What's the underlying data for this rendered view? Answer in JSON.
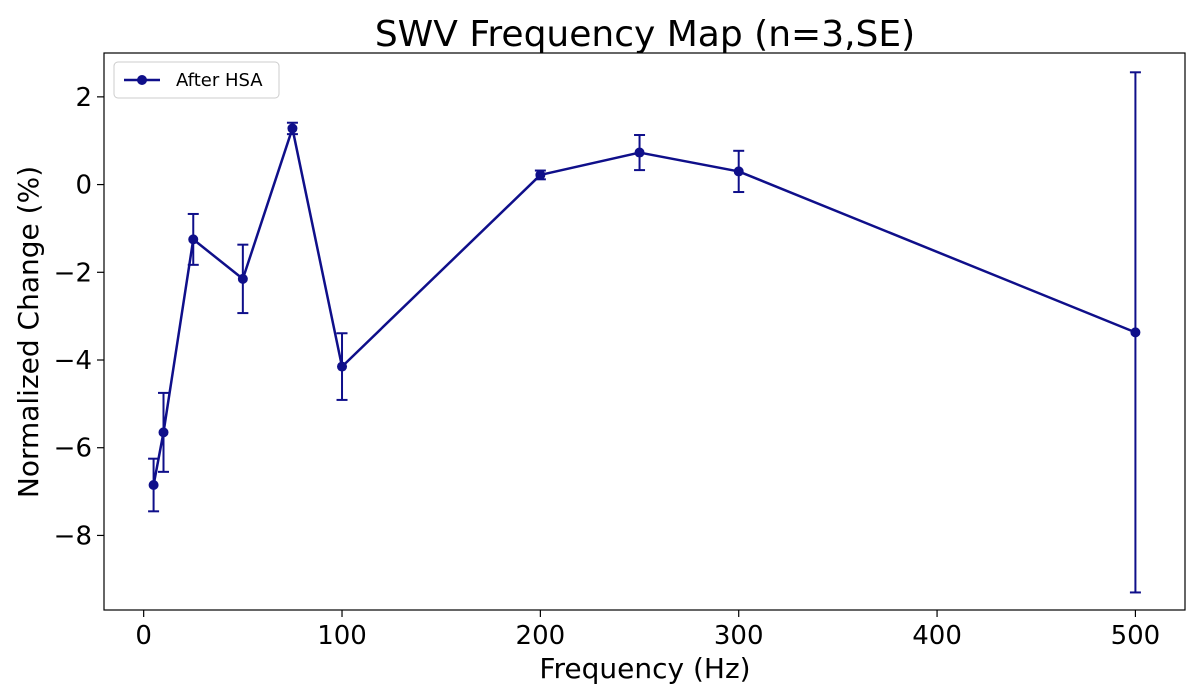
{
  "chart_data": {
    "type": "line",
    "title": "SWV Frequency Map (n=3,SE)",
    "xlabel": "Frequency (Hz)",
    "ylabel": "Normalized Change (%)",
    "xlim": [
      -20,
      525
    ],
    "ylim": [
      -9.7,
      3.0
    ],
    "xticks": [
      0,
      100,
      200,
      300,
      400,
      500
    ],
    "yticks": [
      -8,
      -6,
      -4,
      -2,
      0,
      2
    ],
    "xtick_labels": [
      "0",
      "100",
      "200",
      "300",
      "400",
      "500"
    ],
    "ytick_labels": [
      "−8",
      "−6",
      "−4",
      "−2",
      "0",
      "2"
    ],
    "legend": {
      "location": "upper left",
      "entries": [
        "After HSA"
      ]
    },
    "grid": false,
    "colors": {
      "series": "#0f0f8a"
    },
    "series": [
      {
        "name": "After HSA",
        "x": [
          5,
          10,
          25,
          50,
          75,
          100,
          200,
          250,
          300,
          500
        ],
        "y": [
          -6.85,
          -5.65,
          -1.25,
          -2.15,
          1.28,
          -4.15,
          0.22,
          0.73,
          0.3,
          -3.37
        ],
        "err": [
          0.6,
          0.9,
          0.58,
          0.78,
          0.13,
          0.76,
          0.1,
          0.4,
          0.47,
          5.93
        ]
      }
    ]
  }
}
